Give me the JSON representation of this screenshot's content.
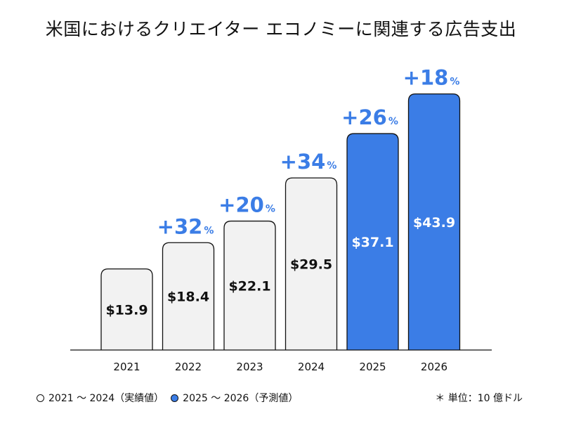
{
  "title": "米国におけるクリエイター エコノミーに関連する広告支出",
  "legend": {
    "actual": "2021 〜 2024（実績値）",
    "forecast": "2025 〜 2026（予測値）"
  },
  "unit_note": "＊ 単位：10 億ドル",
  "colors": {
    "actual_fill": "#f2f2f2",
    "forecast_fill": "#3b7de6",
    "growth_text": "#3b7de6",
    "outline": "#111111"
  },
  "chart_data": {
    "type": "bar",
    "categories": [
      "2021",
      "2022",
      "2023",
      "2024",
      "2025",
      "2026"
    ],
    "values": [
      13.9,
      18.4,
      22.1,
      29.5,
      37.1,
      43.9
    ],
    "value_labels": [
      "$13.9",
      "$18.4",
      "$22.1",
      "$29.5",
      "$37.1",
      "$43.9"
    ],
    "growth_labels": [
      "",
      "+32",
      "+20",
      "+34",
      "+26",
      "+18"
    ],
    "growth_suffix": "%",
    "forecast": [
      false,
      false,
      false,
      false,
      true,
      true
    ],
    "ylim": [
      0,
      48
    ],
    "grid": false
  }
}
